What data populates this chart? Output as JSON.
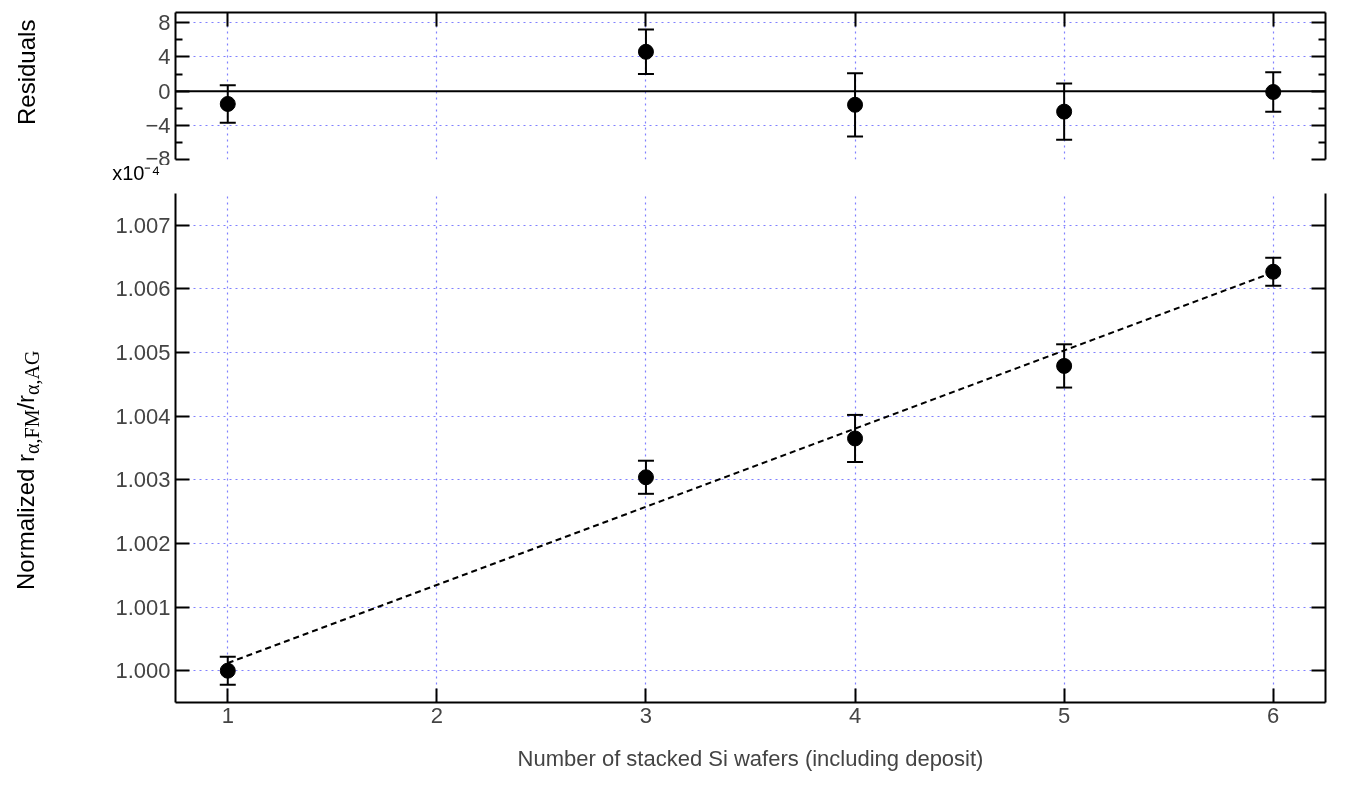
{
  "chart_data": [
    {
      "type": "scatter",
      "ylabel": "Residuals",
      "x": [
        1,
        3,
        4,
        5,
        6
      ],
      "marker": "circle",
      "grid": true,
      "tick_labels": "y",
      "xlim": [
        0.75,
        6.25
      ],
      "xticks": [
        1,
        2,
        3,
        4,
        5,
        6
      ],
      "ylim": [
        -8,
        9.2
      ],
      "yticks": [
        8,
        4,
        0,
        -4,
        -8
      ],
      "annotations": [
        "x10⁻⁴"
      ],
      "series": [
        {
          "color": "#000000",
          "values": [
            -1.5,
            4.6,
            -1.6,
            -2.4,
            -0.1
          ],
          "errors": [
            2.2,
            2.6,
            3.7,
            3.3,
            2.3
          ]
        }
      ],
      "ref_lines": [
        {
          "axis": "y",
          "value": 0,
          "color": "#000000"
        }
      ]
    },
    {
      "type": "scatter",
      "xlabel": "Number of stacked Si wafers (including deposit)",
      "ylabel": "Normalized r$_{α,FM}$/r$_{α,AG}$",
      "marker": "circle",
      "grid": true,
      "xlim": [
        0.75,
        6.25
      ],
      "xticks": [
        1,
        2,
        3,
        4,
        5,
        6
      ],
      "ylim": [
        0.9995,
        1.0075
      ],
      "yticks": [
        {
          "value": 1.0,
          "label": "1.000"
        },
        1.001,
        1.002,
        1.003,
        1.004,
        1.005,
        1.006,
        1.007
      ],
      "series": [
        {
          "x": [
            1,
            3,
            4,
            5,
            6
          ],
          "color": "#000000",
          "values": [
            1.0,
            1.00304,
            1.00365,
            1.00479,
            1.00627
          ],
          "errors": [
            0.00022,
            0.00026,
            0.00037,
            0.00034,
            0.00022
          ]
        },
        {
          "type": "line",
          "x": [
            1,
            6
          ],
          "color": "#000000",
          "values": [
            1.00012,
            1.00626
          ],
          "line_style": "dashed",
          "marker": "none"
        }
      ]
    }
  ]
}
